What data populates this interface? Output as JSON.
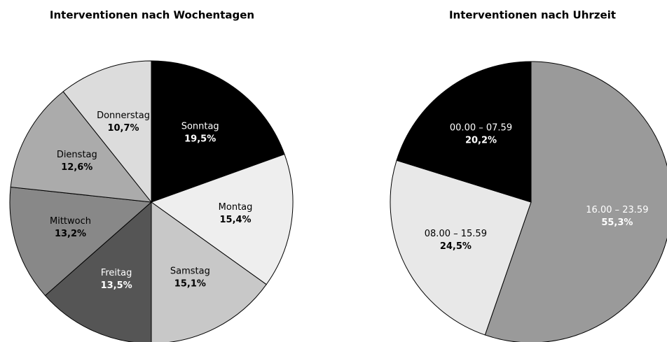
{
  "chart_data": [
    {
      "type": "pie",
      "title": "Interventionen nach Wochentagen",
      "categories": [
        "Sonntag",
        "Montag",
        "Samstag",
        "Freitag",
        "Mittwoch",
        "Dienstag",
        "Donnerstag"
      ],
      "values": [
        19.5,
        15.4,
        15.1,
        13.5,
        13.2,
        12.6,
        10.7
      ],
      "value_labels": [
        "19,5%",
        "15,4%",
        "15,1%",
        "13,5%",
        "13,2%",
        "12,6%",
        "10,7%"
      ],
      "colors": [
        "#000000",
        "#eeeeee",
        "#c8c8c8",
        "#555555",
        "#888888",
        "#ababab",
        "#dcdcdc"
      ]
    },
    {
      "type": "pie",
      "title": "Interventionen nach Uhrzeit",
      "categories": [
        "16.00 – 23.59",
        "08.00 – 15.59",
        "00.00 – 07.59"
      ],
      "values": [
        55.3,
        24.5,
        20.2
      ],
      "value_labels": [
        "55,3%",
        "24,5%",
        "20,2%"
      ],
      "colors": [
        "#9a9a9a",
        "#e8e8e8",
        "#000000"
      ]
    }
  ]
}
